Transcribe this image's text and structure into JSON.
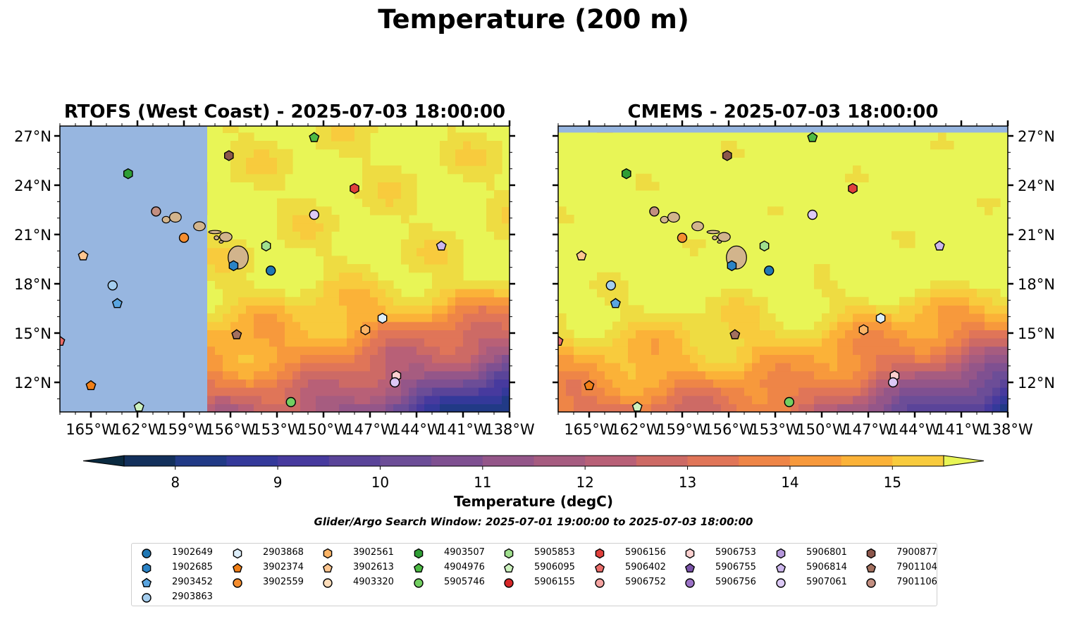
{
  "figure": {
    "suptitle": "Temperature (200 m)",
    "search_window": "Glider/Argo Search Window: 2025-07-01 19:00:00 to 2025-07-03 18:00:00"
  },
  "chart_data": {
    "type": "heatmap",
    "panels": [
      {
        "title": "RTOFS (West Coast) - 2025-07-03 18:00:00",
        "model_west_limit_lon": -157.5
      },
      {
        "title": "CMEMS - 2025-07-03 18:00:00",
        "model_north_limit_lat": 27.2
      }
    ],
    "lon_range": [
      -167,
      -138
    ],
    "lat_range": [
      10.2,
      27.6
    ],
    "x_ticks": [
      "165°W",
      "162°W",
      "159°W",
      "156°W",
      "153°W",
      "150°W",
      "147°W",
      "144°W",
      "141°W",
      "138°W"
    ],
    "x_tick_values": [
      -165,
      -162,
      -159,
      -156,
      -153,
      -150,
      -147,
      -144,
      -141,
      -138
    ],
    "y_ticks": [
      "27°N",
      "24°N",
      "21°N",
      "18°N",
      "15°N",
      "12°N"
    ],
    "y_tick_values": [
      27,
      24,
      21,
      18,
      15,
      12
    ],
    "colorbar": {
      "label": "Temperature (degC)",
      "min": 7.5,
      "max": 15.5,
      "step": 0.5,
      "ticks": [
        "8",
        "9",
        "10",
        "11",
        "12",
        "13",
        "14",
        "15"
      ],
      "tick_values": [
        8,
        9,
        10,
        11,
        12,
        13,
        14,
        15
      ],
      "extend": "both",
      "colors": [
        "#0a2a40",
        "#13305c",
        "#213a86",
        "#34399a",
        "#473a9e",
        "#5a4499",
        "#6c4d97",
        "#7f5091",
        "#945689",
        "#a65c80",
        "#b86077",
        "#cd6a65",
        "#e07558",
        "#ee8547",
        "#f7993c",
        "#fbb238",
        "#f8cb3d",
        "#eedc42"
      ],
      "land_color": "#d2b48c",
      "ocean_mask_color": "#97b6e0",
      "over_color": "#e8f556"
    },
    "hawaii": [
      {
        "name": "Niihau",
        "lon": -160.15,
        "lat": 21.9,
        "w": 0.5,
        "h": 0.4
      },
      {
        "name": "Kauai",
        "lon": -159.55,
        "lat": 22.05,
        "w": 0.75,
        "h": 0.6
      },
      {
        "name": "Oahu",
        "lon": -158.0,
        "lat": 21.5,
        "w": 0.75,
        "h": 0.55
      },
      {
        "name": "Molokai",
        "lon": -157.0,
        "lat": 21.15,
        "w": 0.8,
        "h": 0.2
      },
      {
        "name": "Lanai",
        "lon": -156.9,
        "lat": 20.8,
        "w": 0.3,
        "h": 0.25
      },
      {
        "name": "Maui",
        "lon": -156.3,
        "lat": 20.85,
        "w": 0.8,
        "h": 0.55
      },
      {
        "name": "Kahoolawe",
        "lon": -156.6,
        "lat": 20.55,
        "w": 0.25,
        "h": 0.15
      },
      {
        "name": "Hawaii",
        "lon": -155.5,
        "lat": 19.6,
        "w": 1.3,
        "h": 1.4
      }
    ],
    "series": [
      {
        "name": "1902649",
        "marker": "circle",
        "color": "#1f77b4",
        "points": [
          [
            -153.4,
            18.8
          ]
        ]
      },
      {
        "name": "1902685",
        "marker": "hexagon",
        "color": "#2b83c6",
        "points": [
          [
            -155.8,
            19.1
          ]
        ]
      },
      {
        "name": "2903452",
        "marker": "pentagon",
        "color": "#5aa5e0",
        "points": [
          [
            -163.3,
            16.8
          ]
        ]
      },
      {
        "name": "2903863",
        "marker": "circle",
        "color": "#a4cdee",
        "points": [
          [
            -163.6,
            17.9
          ]
        ]
      },
      {
        "name": "2903868",
        "marker": "hexagon",
        "color": "#ddeefa",
        "points": [
          [
            -146.2,
            15.9
          ]
        ]
      },
      {
        "name": "3902374",
        "marker": "pentagon",
        "color": "#f07f17",
        "points": [
          [
            -165.0,
            11.8
          ]
        ]
      },
      {
        "name": "3902559",
        "marker": "circle",
        "color": "#f58d2e",
        "points": [
          [
            -159.0,
            20.8
          ]
        ]
      },
      {
        "name": "3902561",
        "marker": "hexagon",
        "color": "#fbb466",
        "points": [
          [
            -147.3,
            15.2
          ]
        ]
      },
      {
        "name": "3902613",
        "marker": "pentagon",
        "color": "#fdc690",
        "points": [
          [
            -165.5,
            19.7
          ]
        ]
      },
      {
        "name": "4903320",
        "marker": "circle",
        "color": "#feddba",
        "points": []
      },
      {
        "name": "4903507",
        "marker": "hexagon",
        "color": "#2f9e35",
        "points": [
          [
            -162.6,
            24.7
          ]
        ]
      },
      {
        "name": "4904976",
        "marker": "pentagon",
        "color": "#4dba44",
        "points": [
          [
            -150.6,
            26.9
          ]
        ]
      },
      {
        "name": "5905746",
        "marker": "circle",
        "color": "#72cf61",
        "points": [
          [
            -152.1,
            10.8
          ]
        ]
      },
      {
        "name": "5905853",
        "marker": "hexagon",
        "color": "#a0e08e",
        "points": [
          [
            -153.7,
            20.3
          ]
        ]
      },
      {
        "name": "5906095",
        "marker": "pentagon",
        "color": "#cdf2bf",
        "points": [
          [
            -161.9,
            10.5
          ]
        ]
      },
      {
        "name": "5906155",
        "marker": "circle",
        "color": "#d62728",
        "points": []
      },
      {
        "name": "5906156",
        "marker": "hexagon",
        "color": "#e0403c",
        "points": [
          [
            -148.0,
            23.8
          ]
        ]
      },
      {
        "name": "5906402",
        "marker": "pentagon",
        "color": "#ea6d6a",
        "points": [
          [
            -167.0,
            14.5
          ]
        ]
      },
      {
        "name": "5906752",
        "marker": "circle",
        "color": "#f4a3a1",
        "points": []
      },
      {
        "name": "5906753",
        "marker": "hexagon",
        "color": "#fbd0cf",
        "points": [
          [
            -145.3,
            12.4
          ]
        ]
      },
      {
        "name": "5906755",
        "marker": "pentagon",
        "color": "#7a53a8",
        "points": []
      },
      {
        "name": "5906756",
        "marker": "circle",
        "color": "#9b72c6",
        "points": []
      },
      {
        "name": "5906801",
        "marker": "hexagon",
        "color": "#b597db",
        "points": []
      },
      {
        "name": "5906814",
        "marker": "pentagon",
        "color": "#ccb6ec",
        "points": [
          [
            -142.4,
            20.3
          ]
        ]
      },
      {
        "name": "5907061",
        "marker": "circle",
        "color": "#dcc9f5",
        "points": [
          [
            -150.6,
            22.2
          ],
          [
            -145.4,
            12.0
          ]
        ]
      },
      {
        "name": "7900877",
        "marker": "hexagon",
        "color": "#8c564b",
        "points": [
          [
            -156.1,
            25.8
          ]
        ]
      },
      {
        "name": "7901104",
        "marker": "pentagon",
        "color": "#a3705f",
        "points": [
          [
            -155.6,
            14.9
          ]
        ]
      },
      {
        "name": "7901106",
        "marker": "circle",
        "color": "#c28e80",
        "points": [
          [
            -160.8,
            22.4
          ]
        ]
      }
    ]
  }
}
